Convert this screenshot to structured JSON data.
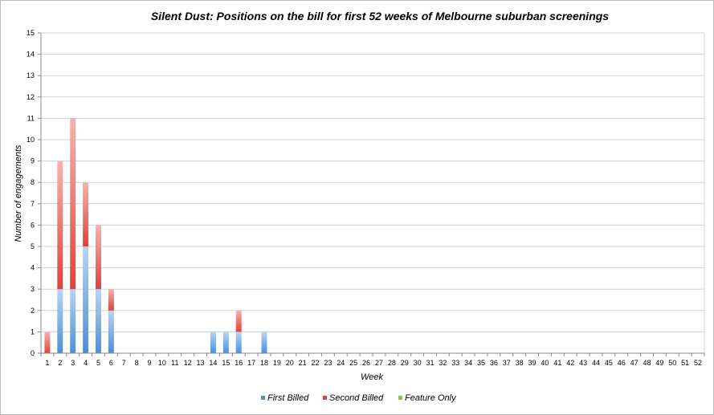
{
  "chart_data": {
    "type": "bar",
    "stacked": true,
    "title": "Silent Dust: Positions on the bill for first 52 weeks of Melbourne suburban screenings",
    "xlabel": "Week",
    "ylabel": "Number of engagements",
    "ylim": [
      0,
      15
    ],
    "y_ticks": [
      "0",
      "1",
      "2",
      "3",
      "4",
      "5",
      "6",
      "7",
      "8",
      "9",
      "10",
      "11",
      "12",
      "13",
      "14",
      "15"
    ],
    "categories": [
      "1",
      "2",
      "3",
      "4",
      "5",
      "6",
      "7",
      "8",
      "9",
      "10",
      "11",
      "12",
      "13",
      "14",
      "15",
      "16",
      "17",
      "18",
      "19",
      "20",
      "21",
      "22",
      "23",
      "24",
      "25",
      "26",
      "27",
      "28",
      "29",
      "30",
      "31",
      "32",
      "33",
      "34",
      "35",
      "36",
      "37",
      "38",
      "39",
      "40",
      "41",
      "42",
      "43",
      "44",
      "45",
      "46",
      "47",
      "48",
      "49",
      "50",
      "51",
      "52"
    ],
    "grid": true,
    "legend_position": "bottom",
    "series": [
      {
        "name": "First Billed",
        "color": "#4a90d9",
        "values": [
          0,
          3,
          3,
          5,
          3,
          2,
          0,
          0,
          0,
          0,
          0,
          0,
          0,
          1,
          1,
          1,
          0,
          1,
          0,
          0,
          0,
          0,
          0,
          0,
          0,
          0,
          0,
          0,
          0,
          0,
          0,
          0,
          0,
          0,
          0,
          0,
          0,
          0,
          0,
          0,
          0,
          0,
          0,
          0,
          0,
          0,
          0,
          0,
          0,
          0,
          0,
          0
        ]
      },
      {
        "name": "Second Billed",
        "color": "#e0413a",
        "values": [
          1,
          6,
          8,
          3,
          3,
          1,
          0,
          0,
          0,
          0,
          0,
          0,
          0,
          0,
          0,
          1,
          0,
          0,
          0,
          0,
          0,
          0,
          0,
          0,
          0,
          0,
          0,
          0,
          0,
          0,
          0,
          0,
          0,
          0,
          0,
          0,
          0,
          0,
          0,
          0,
          0,
          0,
          0,
          0,
          0,
          0,
          0,
          0,
          0,
          0,
          0,
          0
        ]
      },
      {
        "name": "Feature Only",
        "color": "#7ccf3a",
        "values": [
          0,
          0,
          0,
          0,
          0,
          0,
          0,
          0,
          0,
          0,
          0,
          0,
          0,
          0,
          0,
          0,
          0,
          0,
          0,
          0,
          0,
          0,
          0,
          0,
          0,
          0,
          0,
          0,
          0,
          0,
          0,
          0,
          0,
          0,
          0,
          0,
          0,
          0,
          0,
          0,
          0,
          0,
          0,
          0,
          0,
          0,
          0,
          0,
          0,
          0,
          0,
          0
        ]
      }
    ]
  }
}
